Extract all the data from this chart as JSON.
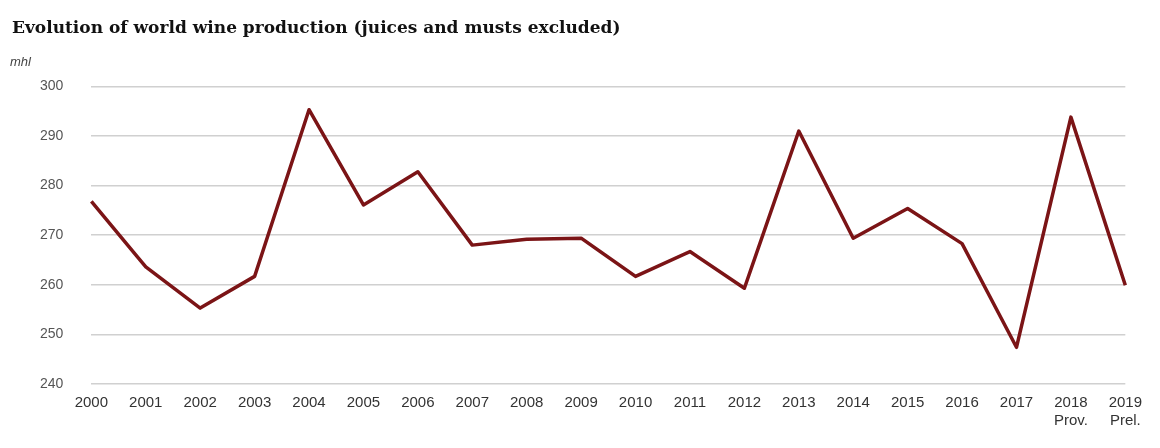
{
  "chart_data": {
    "type": "line",
    "title": "Evolution of world wine production (juices and musts excluded)",
    "ylabel": "mhl",
    "categories": [
      "2000",
      "2001",
      "2002",
      "2003",
      "2004",
      "2005",
      "2006",
      "2007",
      "2008",
      "2009",
      "2010",
      "2011",
      "2012",
      "2013",
      "2014",
      "2015",
      "2016",
      "2017",
      "2018\nProv.",
      "2019\nPrel."
    ],
    "series": [
      {
        "color": "#7b1416",
        "values": [
          276.8,
          263.6,
          255.3,
          261.7,
          295.3,
          276.1,
          282.8,
          268.0,
          269.2,
          269.4,
          261.7,
          266.7,
          259.3,
          291.0,
          269.4,
          275.4,
          268.3,
          247.4,
          293.8,
          259.9
        ]
      }
    ],
    "ylim": [
      240,
      300
    ],
    "yticks": [
      240,
      250,
      260,
      270,
      280,
      290,
      300
    ],
    "grid": "y",
    "legend": false,
    "marker": "none",
    "line_style": "solid"
  }
}
